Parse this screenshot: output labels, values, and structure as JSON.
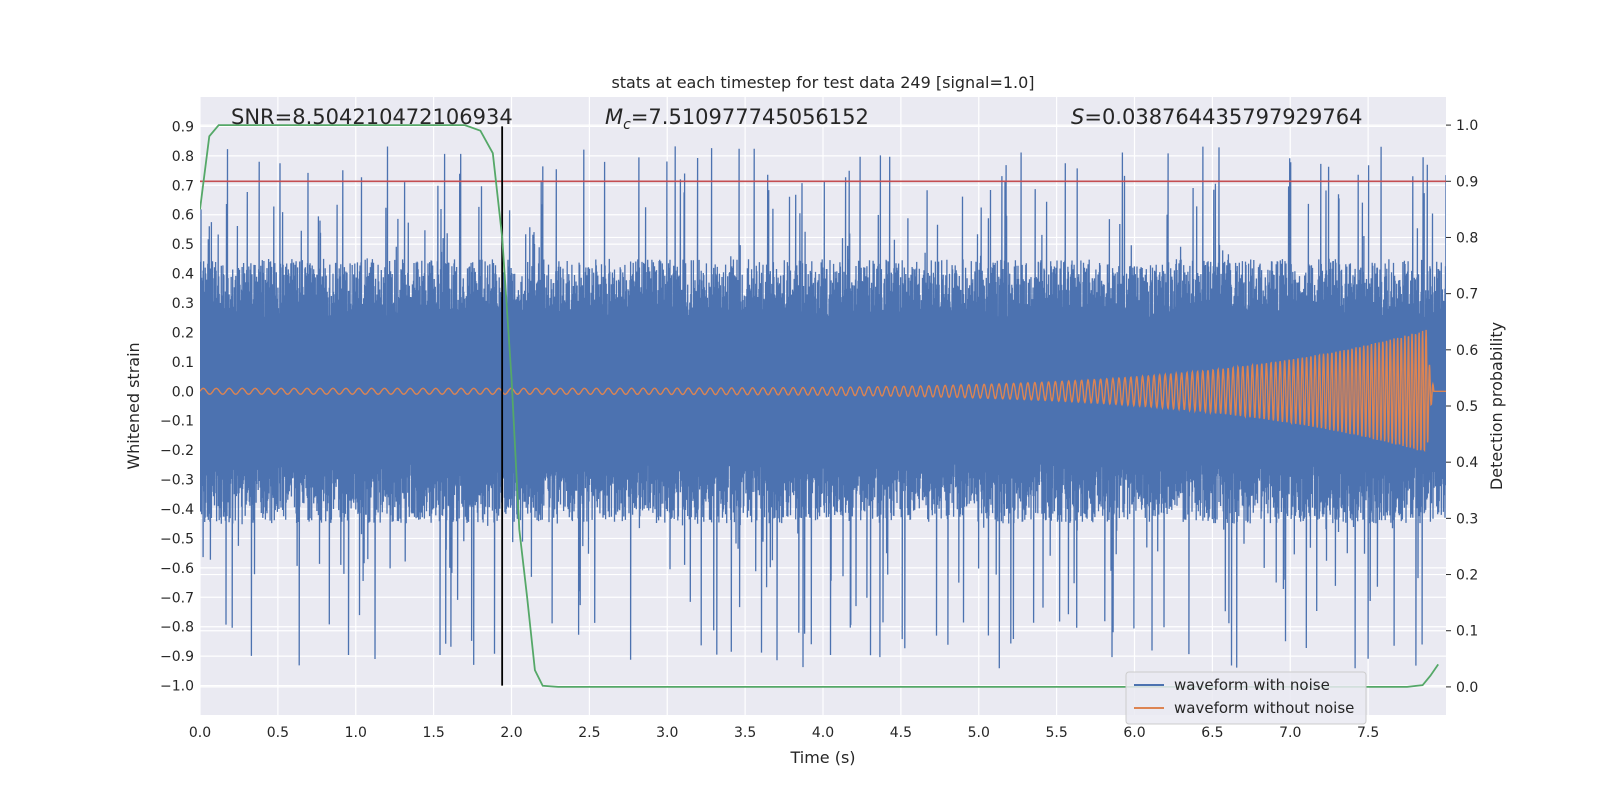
{
  "chart_data": {
    "type": "line",
    "title": "stats at each timestep for test data 249 [signal=1.0]",
    "xlabel": "Time (s)",
    "ylabel": "Whitened strain",
    "y2label": "Detection probability",
    "xlim": [
      0.0,
      8.0
    ],
    "ylim": [
      -1.1,
      1.0
    ],
    "y2lim": [
      -0.05,
      1.05
    ],
    "xticks": [
      0.0,
      0.5,
      1.0,
      1.5,
      2.0,
      2.5,
      3.0,
      3.5,
      4.0,
      4.5,
      5.0,
      5.5,
      6.0,
      6.5,
      7.0,
      7.5
    ],
    "xtick_labels": [
      "0.0",
      "0.5",
      "1.0",
      "1.5",
      "2.0",
      "2.5",
      "3.0",
      "3.5",
      "4.0",
      "4.5",
      "5.0",
      "5.5",
      "6.0",
      "6.5",
      "7.0",
      "7.5"
    ],
    "yticks": [
      0.9,
      0.8,
      0.7,
      0.6,
      0.5,
      0.4,
      0.3,
      0.2,
      0.1,
      0.0,
      -0.1,
      -0.2,
      -0.3,
      -0.4,
      -0.5,
      -0.6,
      -0.7,
      -0.8,
      -0.9,
      -1.0
    ],
    "ytick_labels": [
      "0.9",
      "0.8",
      "0.7",
      "0.6",
      "0.5",
      "0.4",
      "0.3",
      "0.2",
      "0.1",
      "0.0",
      "−0.1",
      "−0.2",
      "−0.3",
      "−0.4",
      "−0.5",
      "−0.6",
      "−0.7",
      "−0.8",
      "−0.9",
      "−1.0"
    ],
    "y2ticks": [
      1.0,
      0.9,
      0.8,
      0.7,
      0.6,
      0.5,
      0.4,
      0.3,
      0.2,
      0.1,
      0.0
    ],
    "y2tick_labels": [
      "1.0",
      "0.9",
      "0.8",
      "0.7",
      "0.6",
      "0.5",
      "0.4",
      "0.3",
      "0.2",
      "0.1",
      "0.0"
    ],
    "grid": true,
    "legend_position": "bottom-right",
    "annotations": [
      {
        "prefix": "SNR",
        "text": "=8.504210472106934"
      },
      {
        "prefix": "M",
        "sub": "c",
        "text": "=7.510977745056152"
      },
      {
        "prefix": "S",
        "text": "=0.038764435797929764"
      }
    ],
    "series": [
      {
        "name": "waveform with noise",
        "color": "#4c72b0",
        "axis": "left",
        "kind": "noise",
        "typical_envelope": [
          -0.45,
          0.45
        ],
        "extremes": [
          -1.0,
          0.9
        ]
      },
      {
        "name": "waveform without noise",
        "color": "#dd8452",
        "axis": "left",
        "kind": "chirp",
        "start_amplitude": 0.01,
        "peak_amplitude": 0.21,
        "merger_time": 7.88,
        "start_freq_hz": 12,
        "end_freq_hz": 45
      },
      {
        "name": "detection probability",
        "color": "#55a868",
        "axis": "right",
        "x": [
          0.0,
          0.06,
          0.12,
          0.2,
          1.0,
          1.5,
          1.7,
          1.8,
          1.88,
          1.94,
          2.0,
          2.05,
          2.1,
          2.15,
          2.2,
          2.3,
          3.0,
          5.0,
          7.0,
          7.75,
          7.85,
          7.9,
          7.95
        ],
        "y": [
          0.85,
          0.98,
          1.0,
          1.0,
          1.0,
          1.0,
          1.0,
          0.99,
          0.95,
          0.8,
          0.55,
          0.28,
          0.16,
          0.03,
          0.002,
          0.0,
          0.0,
          0.0,
          0.0,
          0.0,
          0.003,
          0.02,
          0.04
        ]
      }
    ],
    "threshold_line": {
      "axis": "right",
      "value": 0.9,
      "color": "#c44e52"
    },
    "vertical_line": {
      "x": 1.94,
      "ymin": -1.0,
      "ymax": 0.9,
      "color": "#000000"
    }
  }
}
